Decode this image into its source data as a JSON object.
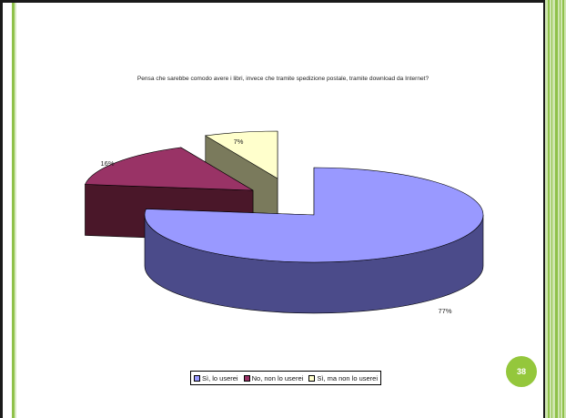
{
  "page_number": "38",
  "colors": {
    "frame_green": "#8fc14a",
    "badge": "#94c73c",
    "series": [
      "#9999ff",
      "#993366",
      "#ffffcc"
    ],
    "series_side": [
      "#4b4b8a",
      "#4a1729",
      "#7a7a5c"
    ]
  },
  "chart_data": {
    "type": "pie",
    "title": "Pensa che sarebbe comodo avere i libri, invece che tramite spedizione postale, tramite download da Internet?",
    "categories": [
      "Sì, lo userei",
      "No, non lo userei",
      "Sì, ma non lo userei"
    ],
    "values": [
      77,
      16,
      7
    ],
    "data_labels": [
      "77%",
      "16%",
      "7%"
    ],
    "exploded": true,
    "three_d": true,
    "legend_position": "bottom"
  }
}
